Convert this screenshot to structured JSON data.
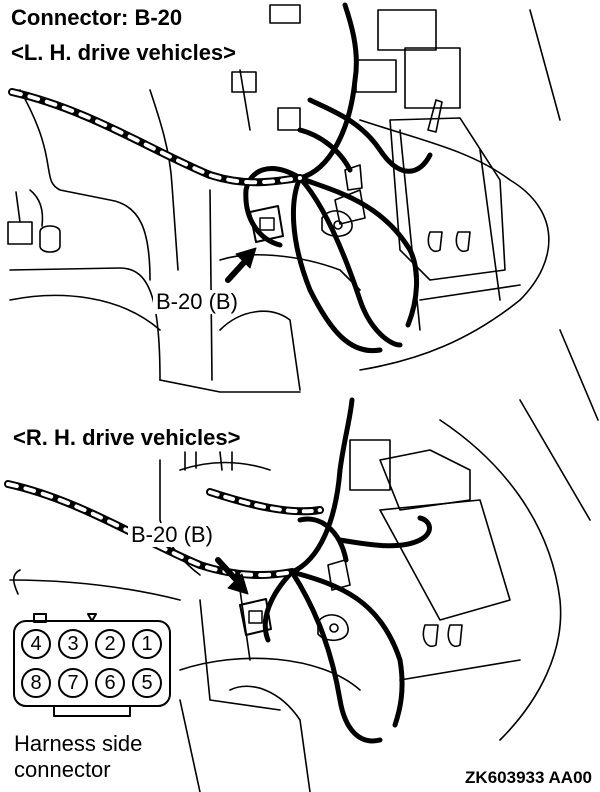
{
  "header": {
    "title": "Connector: B-20",
    "lhd_label": "<L. H. drive vehicles>",
    "rhd_label": "<R. H. drive vehicles>"
  },
  "callouts": {
    "lhd": "B-20 (B)",
    "rhd": "B-20 (B)"
  },
  "connector_face": {
    "caption_line1": "Harness side",
    "caption_line2": "connector",
    "top_row_pins": [
      "4",
      "3",
      "2",
      "1"
    ],
    "bottom_row_pins": [
      "8",
      "7",
      "6",
      "5"
    ]
  },
  "figure_id": "ZK603933 AA00"
}
